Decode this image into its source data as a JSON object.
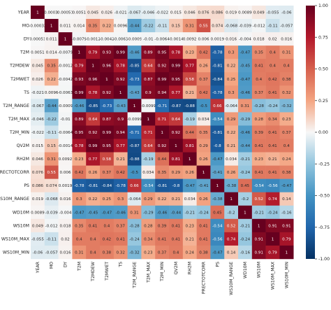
{
  "chart_data": {
    "type": "heatmap",
    "title": "",
    "variables": [
      "YEAR",
      "MO",
      "DY",
      "T2M",
      "T2MDEW",
      "T2MWET",
      "TS",
      "T2M_RANGE",
      "T2M_MAX",
      "T2M_MIN",
      "QV2M",
      "RH2M",
      "PRECTOTCORR",
      "PS",
      "WS10M_RANGE",
      "WD10M",
      "WS10M",
      "WS10M_MAX",
      "WS10M_MIN"
    ],
    "colorscale": {
      "min": -1.0,
      "max": 1.0,
      "low": "#053061",
      "mid": "#f7f7f7",
      "high": "#67001f"
    },
    "colorbar_ticks": [
      "1.00",
      "0.75",
      "0.50",
      "0.25",
      "0.00",
      "-0.25",
      "-0.50",
      "-0.75",
      "-1.00"
    ],
    "labels": [
      [
        "1",
        "-0.00032",
        "0.00051",
        "0.0051",
        "0.045",
        "0.026",
        "-0.021",
        "-0.067",
        "-0.046",
        "-0.022",
        "0.015",
        "0.046",
        "0.076",
        "0.086",
        "0.019",
        "0.0089",
        "0.049",
        "-0.055",
        "-0.06"
      ],
      [
        "-0.00032",
        "1",
        "0.011",
        "0.014",
        "0.35",
        "0.22",
        "0.0096",
        "-0.44",
        "-0.22",
        "-0.11",
        "0.15",
        "0.31",
        "0.55",
        "0.074",
        "-0.068",
        "-0.039",
        "-0.012",
        "-0.11",
        "-0.057"
      ],
      [
        "0.00051",
        "0.011",
        "1",
        "-0.0079",
        "-0.0012",
        "-0.0042",
        "-0.0063",
        "-0.0009",
        "-0.01",
        "-0.0064",
        "-0.0014",
        "0.0092",
        "0.006",
        "0.0019",
        "0.016",
        "-0.004",
        "0.018",
        "0.02",
        "0.016"
      ],
      [
        "0.0051",
        "0.014",
        "-0.0079",
        "1",
        "0.79",
        "0.93",
        "0.99",
        "-0.46",
        "0.89",
        "0.95",
        "0.78",
        "0.23",
        "0.42",
        "-0.78",
        "0.3",
        "-0.47",
        "0.35",
        "0.4",
        "0.31"
      ],
      [
        "0.045",
        "0.35",
        "-0.0012",
        "0.79",
        "1",
        "0.96",
        "0.78",
        "-0.85",
        "0.64",
        "0.92",
        "0.99",
        "0.77",
        "0.26",
        "-0.81",
        "0.22",
        "-0.45",
        "0.41",
        "0.4",
        "0.4"
      ],
      [
        "0.026",
        "0.22",
        "-0.0042",
        "0.93",
        "0.96",
        "1",
        "0.92",
        "-0.73",
        "0.87",
        "0.99",
        "0.95",
        "0.58",
        "0.37",
        "-0.84",
        "0.25",
        "-0.47",
        "0.4",
        "0.42",
        "0.38"
      ],
      [
        "-0.021",
        "0.0096",
        "-0.0063",
        "0.99",
        "0.78",
        "0.92",
        "1",
        "-0.43",
        "0.9",
        "0.94",
        "0.77",
        "0.21",
        "0.42",
        "-0.78",
        "0.3",
        "-0.46",
        "0.37",
        "0.41",
        "0.32"
      ],
      [
        "-0.067",
        "-0.44",
        "-0.0009",
        "-0.46",
        "-0.85",
        "-0.73",
        "-0.43",
        "1",
        "-0.0099",
        "-0.71",
        "-0.87",
        "-0.88",
        "-0.5",
        "0.66",
        "-0.064",
        "0.31",
        "-0.28",
        "-0.24",
        "-0.32"
      ],
      [
        "-0.046",
        "-0.22",
        "-0.01",
        "0.89",
        "0.64",
        "0.87",
        "0.9",
        "-0.0099",
        "1",
        "0.71",
        "0.64",
        "-0.19",
        "0.034",
        "-0.54",
        "0.29",
        "-0.29",
        "0.28",
        "0.34",
        "0.23"
      ],
      [
        "-0.022",
        "-0.11",
        "-0.0064",
        "0.95",
        "0.92",
        "0.99",
        "0.94",
        "-0.71",
        "0.71",
        "1",
        "0.92",
        "0.44",
        "0.35",
        "-0.81",
        "0.22",
        "-0.46",
        "0.39",
        "0.41",
        "0.37"
      ],
      [
        "0.015",
        "0.15",
        "-0.0014",
        "0.78",
        "0.99",
        "0.95",
        "0.77",
        "-0.87",
        "0.64",
        "0.92",
        "1",
        "0.81",
        "0.29",
        "-0.8",
        "0.21",
        "-0.44",
        "0.41",
        "0.41",
        "0.4"
      ],
      [
        "0.046",
        "0.31",
        "0.0092",
        "0.23",
        "0.77",
        "0.58",
        "0.21",
        "-0.88",
        "-0.19",
        "0.44",
        "0.81",
        "1",
        "0.26",
        "-0.47",
        "0.034",
        "-0.21",
        "0.23",
        "0.21",
        "0.24"
      ],
      [
        "0.076",
        "0.55",
        "0.006",
        "0.42",
        "0.26",
        "0.37",
        "0.42",
        "-0.5",
        "0.034",
        "0.35",
        "0.29",
        "0.26",
        "1",
        "-0.41",
        "0.26",
        "-0.24",
        "0.41",
        "0.41",
        "0.38"
      ],
      [
        "0.086",
        "0.074",
        "0.0019",
        "-0.78",
        "-0.81",
        "-0.84",
        "-0.78",
        "0.66",
        "-0.54",
        "-0.81",
        "-0.8",
        "-0.47",
        "-0.41",
        "1",
        "-0.38",
        "0.45",
        "-0.54",
        "-0.56",
        "-0.47"
      ],
      [
        "0.019",
        "-0.068",
        "0.016",
        "0.3",
        "0.22",
        "0.25",
        "0.3",
        "-0.064",
        "0.29",
        "0.22",
        "0.21",
        "0.034",
        "0.26",
        "-0.38",
        "1",
        "-0.2",
        "0.52",
        "0.74",
        "0.14"
      ],
      [
        "0.0089",
        "-0.039",
        "-0.004",
        "-0.47",
        "-0.45",
        "-0.47",
        "-0.46",
        "0.31",
        "-0.29",
        "-0.46",
        "-0.44",
        "-0.21",
        "-0.24",
        "0.45",
        "-0.2",
        "1",
        "-0.21",
        "-0.24",
        "-0.16"
      ],
      [
        "0.049",
        "-0.012",
        "0.018",
        "0.35",
        "0.41",
        "0.4",
        "0.37",
        "-0.28",
        "0.28",
        "0.39",
        "0.41",
        "0.23",
        "0.41",
        "-0.54",
        "0.52",
        "-0.21",
        "1",
        "0.91",
        "0.91"
      ],
      [
        "-0.055",
        "-0.11",
        "0.02",
        "0.4",
        "0.4",
        "0.42",
        "0.41",
        "-0.24",
        "0.34",
        "0.41",
        "0.41",
        "0.21",
        "0.41",
        "-0.56",
        "0.74",
        "-0.24",
        "0.91",
        "1",
        "0.79"
      ],
      [
        "-0.06",
        "-0.057",
        "0.016",
        "0.31",
        "0.4",
        "0.38",
        "0.32",
        "-0.32",
        "0.23",
        "0.37",
        "0.4",
        "0.24",
        "0.38",
        "-0.47",
        "0.14",
        "-0.16",
        "0.91",
        "0.79",
        "1"
      ]
    ]
  }
}
